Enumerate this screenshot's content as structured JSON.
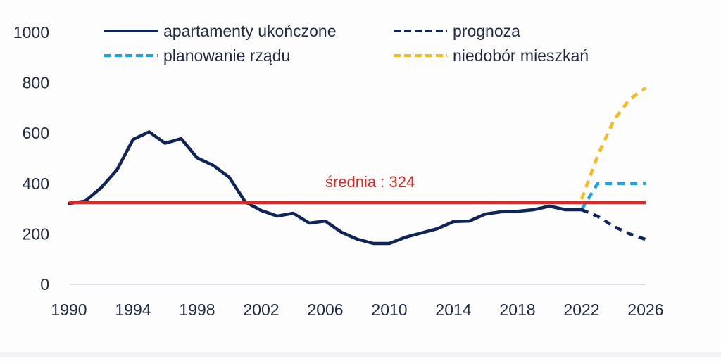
{
  "chart_data": {
    "type": "line",
    "title": "",
    "xlabel": "",
    "ylabel": "",
    "ylim": [
      0,
      1000
    ],
    "xlim": [
      1990,
      2026
    ],
    "yticks": [
      0,
      200,
      400,
      600,
      800,
      1000
    ],
    "xticks": [
      1990,
      1994,
      1998,
      2002,
      2006,
      2010,
      2014,
      2018,
      2022,
      2026
    ],
    "grid": false,
    "legend_position": "top",
    "legend": [
      {
        "label": "apartamenty ukończone",
        "style": "solid",
        "color": "#0f2557"
      },
      {
        "label": "prognoza",
        "style": "dashed",
        "color": "#0f2557"
      },
      {
        "label": "planowanie rządu",
        "style": "dashed",
        "color": "#1da1e2"
      },
      {
        "label": "niedobór mieszkań",
        "style": "dashed",
        "color": "#f5b922"
      }
    ],
    "series": [
      {
        "name": "apartamenty ukończone",
        "style": "solid",
        "color": "#0f2557",
        "x": [
          1990,
          1991,
          1992,
          1993,
          1994,
          1995,
          1996,
          1997,
          1998,
          1999,
          2000,
          2001,
          2002,
          2003,
          2004,
          2005,
          2006,
          2007,
          2008,
          2009,
          2010,
          2011,
          2012,
          2013,
          2014,
          2015,
          2016,
          2017,
          2018,
          2019,
          2020,
          2021,
          2022
        ],
        "values": [
          321,
          330,
          383,
          455,
          575,
          605,
          560,
          578,
          502,
          472,
          425,
          327,
          293,
          271,
          282,
          243,
          251,
          207,
          179,
          162,
          162,
          187,
          204,
          221,
          249,
          251,
          279,
          288,
          290,
          296,
          310,
          296,
          296
        ]
      },
      {
        "name": "prognoza",
        "style": "dashed",
        "color": "#0f2557",
        "x": [
          2022,
          2023,
          2024,
          2025,
          2026
        ],
        "values": [
          296,
          270,
          230,
          200,
          178
        ]
      },
      {
        "name": "planowanie rządu",
        "style": "dashed",
        "color": "#1da1e2",
        "x": [
          2022,
          2023,
          2024,
          2025,
          2026
        ],
        "values": [
          296,
          400,
          400,
          400,
          400
        ]
      },
      {
        "name": "niedobór mieszkań",
        "style": "dashed",
        "color": "#f5b922",
        "x": [
          2022,
          2023,
          2024,
          2025,
          2026
        ],
        "values": [
          338,
          510,
          650,
          735,
          780
        ]
      }
    ],
    "reference_lines": [
      {
        "name": "średnia",
        "value": 324,
        "color": "#e8251c",
        "label": "średnia : 324"
      }
    ],
    "annotations": [
      {
        "text": "średnia : 324",
        "x": 2006,
        "y": 390,
        "color": "#e8251c"
      }
    ]
  },
  "labels": {
    "average": "średnia : 324",
    "legend": {
      "completed": "apartamenty ukończone",
      "forecast": "prognoza",
      "government_plan": "planowanie rządu",
      "housing_shortage": "niedobór mieszkań"
    }
  },
  "colors": {
    "completed": "#0f2557",
    "forecast": "#0f2557",
    "government_plan": "#1da1e2",
    "housing_shortage": "#f5b922",
    "average": "#e8251c",
    "axis": "#d9e1ee",
    "text": "#1f2a44"
  }
}
